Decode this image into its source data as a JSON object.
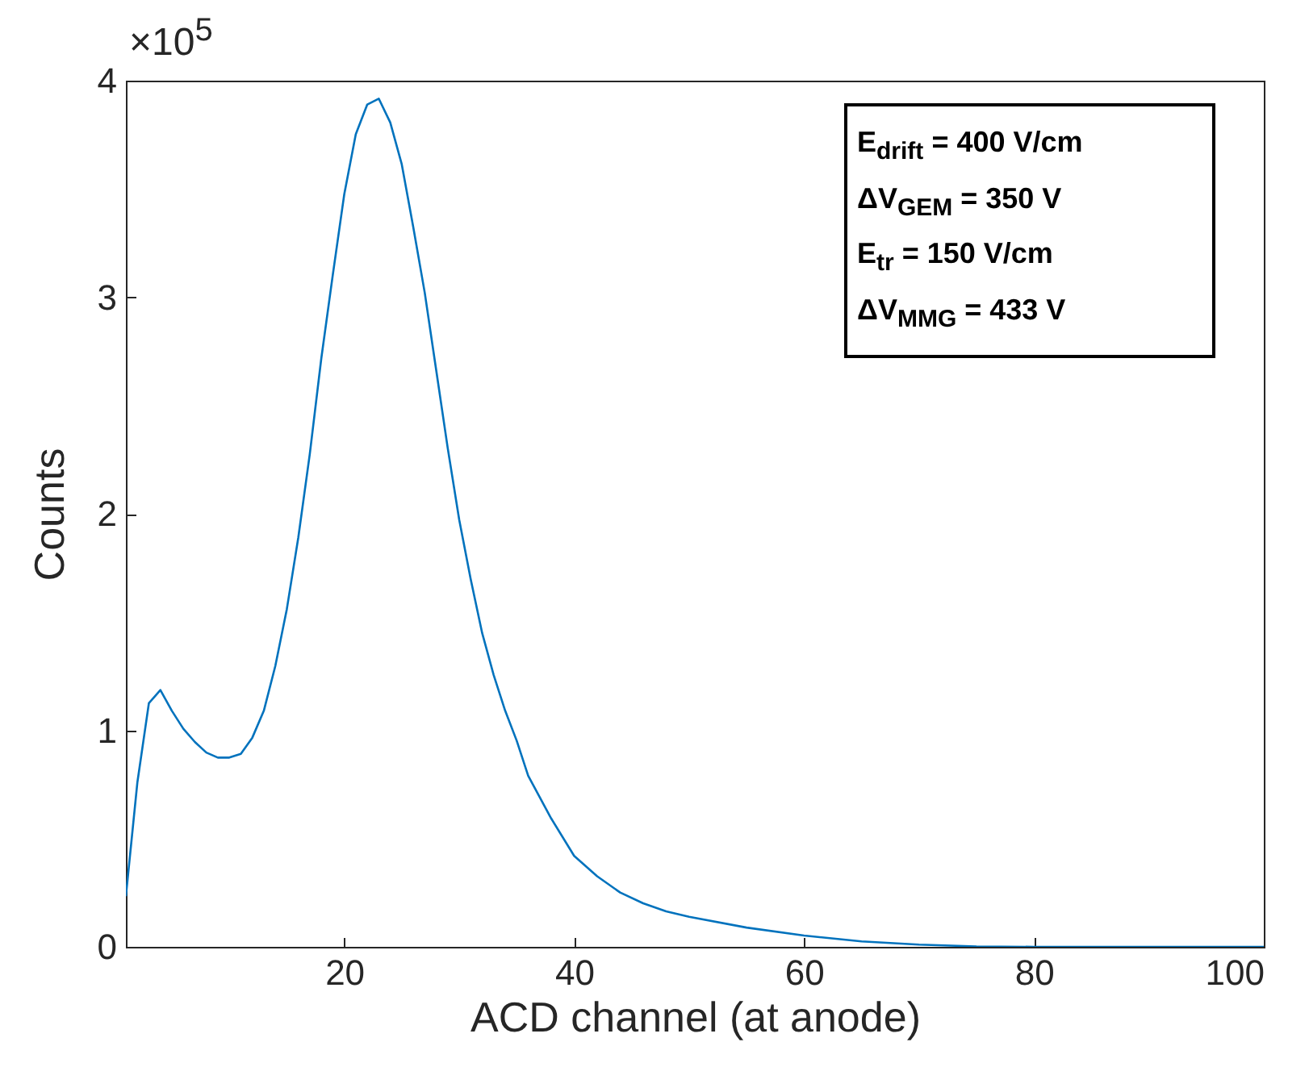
{
  "chart_data": {
    "type": "line",
    "xlabel": "ACD channel (at anode)",
    "ylabel": "Counts",
    "x": [
      1,
      2,
      3,
      4,
      5,
      6,
      7,
      8,
      9,
      10,
      11,
      12,
      13,
      14,
      15,
      16,
      17,
      18,
      19,
      20,
      21,
      22,
      23,
      24,
      25,
      26,
      27,
      28,
      29,
      30,
      31,
      32,
      33,
      34,
      35,
      36,
      38,
      40,
      42,
      44,
      46,
      48,
      50,
      55,
      60,
      65,
      70,
      75,
      80,
      90,
      100
    ],
    "series": [
      {
        "color": "#0072bd",
        "values": [
          0.234,
          0.76,
          1.125,
          1.186,
          1.09,
          1.007,
          0.946,
          0.897,
          0.874,
          0.874,
          0.891,
          0.966,
          1.09,
          1.297,
          1.559,
          1.89,
          2.276,
          2.717,
          3.103,
          3.476,
          3.752,
          3.89,
          3.917,
          3.807,
          3.614,
          3.324,
          3.021,
          2.662,
          2.303,
          1.972,
          1.697,
          1.448,
          1.255,
          1.09,
          0.952,
          0.79,
          0.593,
          0.42,
          0.326,
          0.251,
          0.201,
          0.164,
          0.139,
          0.089,
          0.052,
          0.025,
          0.01,
          0.002,
          0,
          0,
          0
        ]
      }
    ],
    "xlim": [
      1,
      100
    ],
    "xticks": [
      20,
      40,
      60,
      80,
      100
    ],
    "ylim": [
      0,
      4
    ],
    "yticks": [
      0,
      1,
      2,
      3,
      4
    ],
    "grid": false,
    "line_style": "solid",
    "annotations": [
      "×10$^{5}$",
      "E$_{drift}$ = 400 V/cm",
      "ΔV$_{GEM}$ = 350 V",
      "E$_{tr}$ = 150 V/cm",
      "ΔV$_{MMG}$ = 433 V"
    ]
  }
}
